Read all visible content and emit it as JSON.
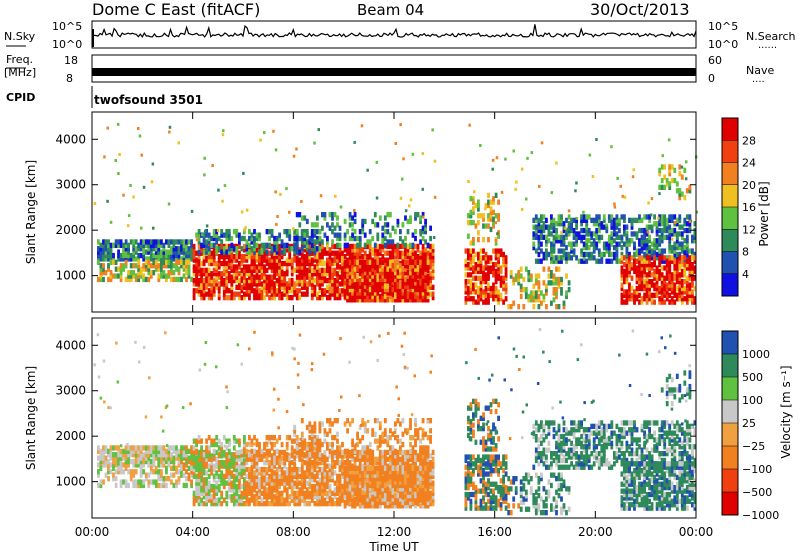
{
  "header": {
    "station": "Dome C East (fitACF)",
    "beam": "Beam 04",
    "date": "30/Oct/2013"
  },
  "strips": {
    "nsky_label": "N.Sky",
    "nsearch_label": "N.Search",
    "nsearch_value": "......",
    "nsky_ticks": [
      "10^5",
      "10^0"
    ],
    "nsearch_ticks": [
      "10^5",
      "10^0"
    ],
    "freq_label": "Freq.",
    "freq_unit": "[MHz]",
    "freq_ticks": [
      "18",
      "8"
    ],
    "nave_label": "Nave",
    "nave_value": "....",
    "nave_ticks": [
      "60",
      "0"
    ],
    "cpid_label": "CPID",
    "cpid_value": "twofsound 3501"
  },
  "colors": {
    "power_scale": [
      "#1010e0",
      "#2050b0",
      "#2e8a5a",
      "#60c040",
      "#f0c020",
      "#f08020",
      "#f04010",
      "#e00000"
    ],
    "velocity_scale": [
      "#e00000",
      "#f04010",
      "#f08020",
      "#f0a040",
      "#c8c8c8",
      "#60c040",
      "#2e8a5a",
      "#2050b0"
    ]
  },
  "chart_data": [
    {
      "type": "heatmap",
      "panel": "power",
      "ylabel": "Slant Range [km]",
      "yticks": [
        1000,
        2000,
        3000,
        4000
      ],
      "ylim": [
        200,
        4600
      ],
      "xlim": [
        0,
        24
      ],
      "xticks": [
        "00:00",
        "04:00",
        "08:00",
        "12:00",
        "16:00",
        "20:00",
        "00:00"
      ],
      "colorbar_label": "Power [dB]",
      "colorbar_ticks": [
        "28",
        "24",
        "20",
        "16",
        "12",
        "8",
        "4"
      ],
      "colorbar_range": [
        0,
        32
      ],
      "data_gap_hours": [
        13.6,
        14.8
      ]
    },
    {
      "type": "heatmap",
      "panel": "velocity",
      "ylabel": "Slant Range [km]",
      "yticks": [
        1000,
        2000,
        3000,
        4000
      ],
      "ylim": [
        200,
        4600
      ],
      "xlim": [
        0,
        24
      ],
      "xticks": [
        "00:00",
        "04:00",
        "08:00",
        "12:00",
        "16:00",
        "20:00",
        "00:00"
      ],
      "xlabel": "Time UT",
      "colorbar_label": "Velocity [m s⁻¹]",
      "colorbar_ticks": [
        "1000",
        "500",
        "100",
        "25",
        "−25",
        "−100",
        "−500",
        "−1000"
      ],
      "data_gap_hours": [
        13.6,
        14.8
      ]
    }
  ]
}
